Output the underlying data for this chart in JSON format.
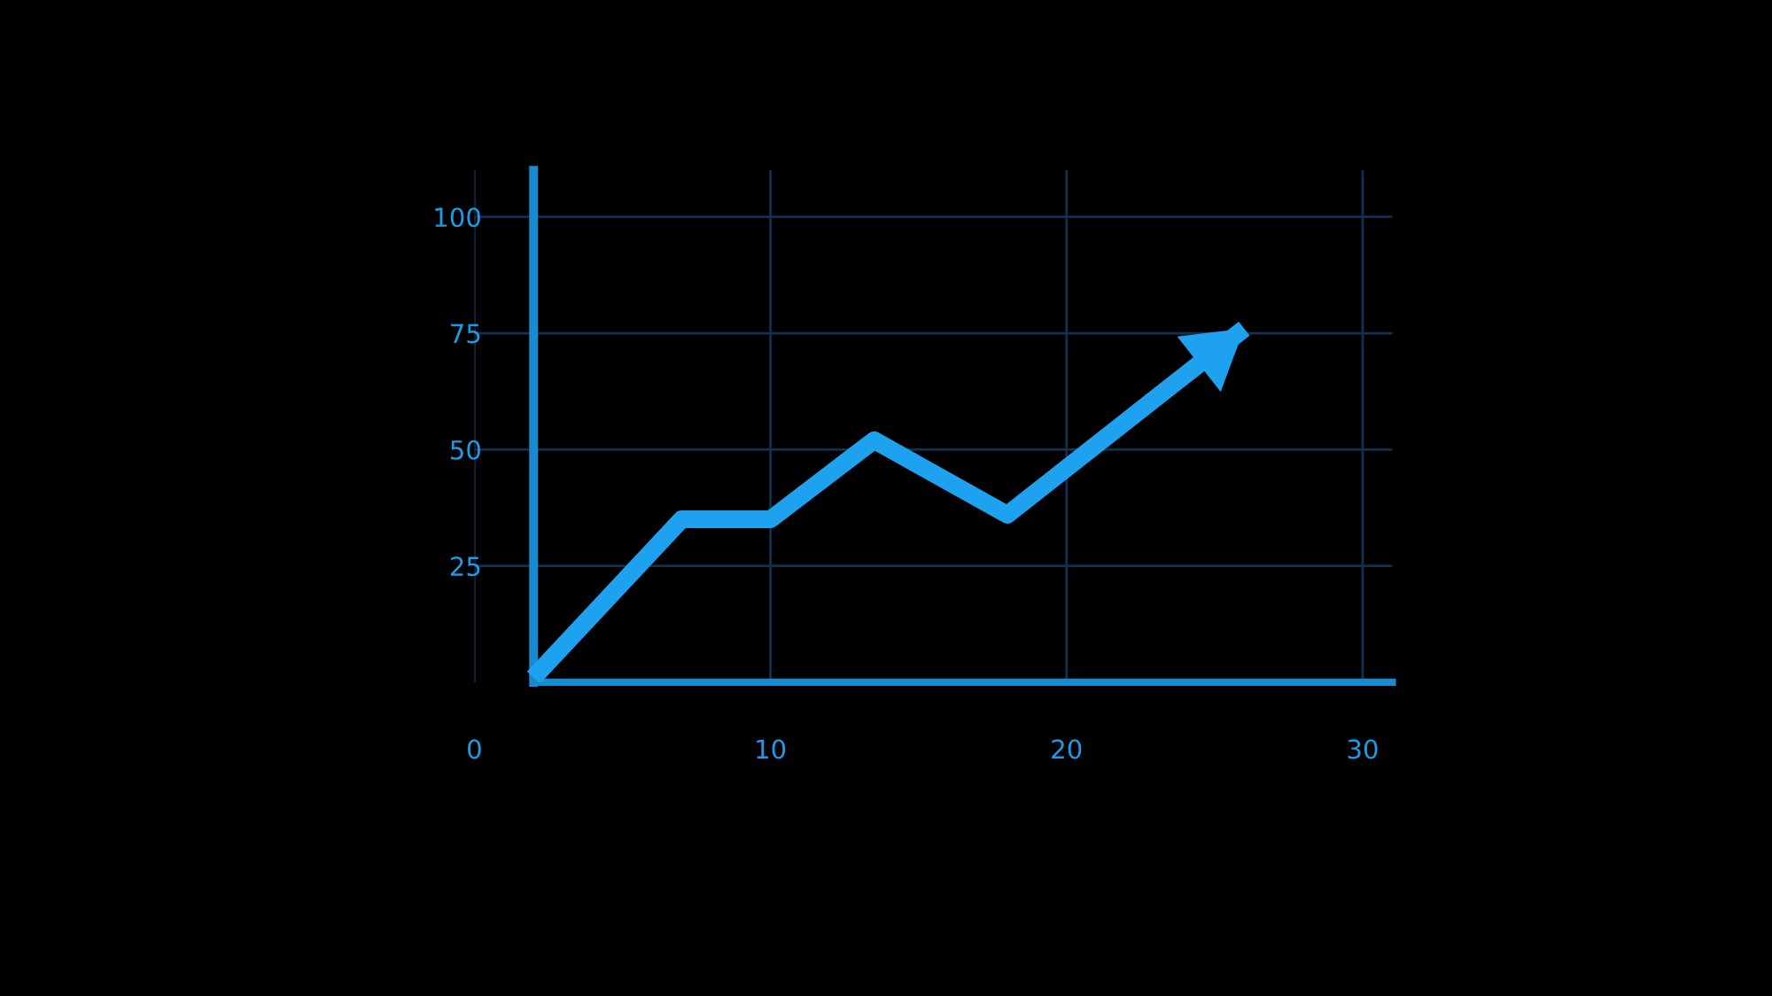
{
  "chart_data": {
    "type": "line",
    "x": [
      2,
      7,
      10,
      13.5,
      18,
      26
    ],
    "values": [
      1,
      35,
      35,
      52,
      36,
      76
    ],
    "color": "#1ea2f0",
    "xlim": [
      0,
      31
    ],
    "ylim": [
      0,
      110
    ],
    "xticks": [
      0,
      10,
      20,
      30
    ],
    "yticks": [
      25,
      50,
      75,
      100
    ],
    "ref_lines": [
      {
        "axis": "x",
        "value": 2,
        "color": "#178ad0"
      }
    ],
    "grid": true
  }
}
